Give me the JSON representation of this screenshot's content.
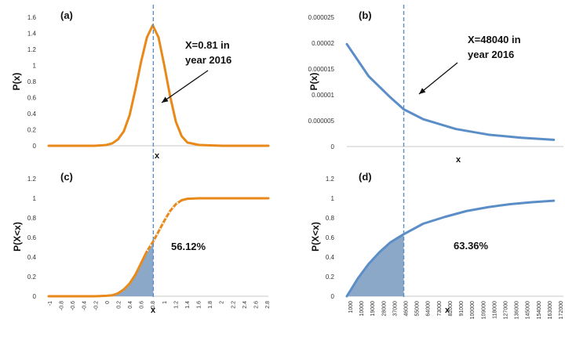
{
  "chart_data": [
    {
      "id": "a",
      "type": "line",
      "panel_label": "(a)",
      "ylabel": "P(x)",
      "xlabel": "x",
      "ylim": [
        0,
        1.6
      ],
      "y_ticks": [
        "0",
        "0.2",
        "0.4",
        "0.6",
        "0.8",
        "1",
        "1.2",
        "1.4",
        "1.6"
      ],
      "color": "#E8891A",
      "series": [
        {
          "x": [
            -1.0,
            -0.6,
            -0.2,
            0.0,
            0.1,
            0.2,
            0.3,
            0.4,
            0.5,
            0.6,
            0.7,
            0.8,
            0.9,
            1.0,
            1.1,
            1.2,
            1.3,
            1.4,
            1.6,
            2.0,
            2.8
          ],
          "y": [
            0.0,
            0.0,
            0.0,
            0.01,
            0.03,
            0.08,
            0.18,
            0.38,
            0.7,
            1.05,
            1.35,
            1.5,
            1.35,
            1.0,
            0.62,
            0.3,
            0.12,
            0.04,
            0.01,
            0.0,
            0.0
          ]
        }
      ],
      "marker": {
        "x": 0.81
      },
      "annotation": [
        "X=0.81 in",
        "year 2016"
      ]
    },
    {
      "id": "b",
      "type": "line",
      "panel_label": "(b)",
      "ylabel": "P(x)",
      "xlabel": "x",
      "ylim": [
        0,
        2.5e-05
      ],
      "y_ticks": [
        "0",
        "0.000005",
        "0.00001",
        "0.000015",
        "0.00002",
        "0.000025"
      ],
      "color": "#5B8EC7",
      "series": [
        {
          "x": [
            1000,
            19000,
            37000,
            48040,
            64000,
            91000,
            118000,
            145000,
            172000
          ],
          "y": [
            1.98e-05,
            1.36e-05,
            9.5e-06,
            7.2e-06,
            5.3e-06,
            3.4e-06,
            2.3e-06,
            1.7e-06,
            1.3e-06
          ]
        }
      ],
      "marker": {
        "x": 48040
      },
      "annotation": [
        "X=48040 in",
        "year 2016"
      ]
    },
    {
      "id": "c",
      "type": "area",
      "panel_label": "(c)",
      "ylabel": "P(X<x)",
      "xlabel": "x",
      "ylim": [
        0,
        1.2
      ],
      "y_ticks": [
        "0",
        "0.2",
        "0.4",
        "0.6",
        "0.8",
        "1",
        "1.2"
      ],
      "x_ticks": [
        "-1",
        "-0.8",
        "-0.6",
        "-0.4",
        "-0.2",
        "0",
        "0.2",
        "0.4",
        "0.6",
        "0.8",
        "1",
        "1.2",
        "1.4",
        "1.6",
        "1.8",
        "2",
        "2.2",
        "2.4",
        "2.6",
        "2.8"
      ],
      "color": "#E8891A",
      "fill_color": "#8CA8C8",
      "series": [
        {
          "x": [
            -1.0,
            -0.6,
            -0.2,
            0.0,
            0.1,
            0.2,
            0.3,
            0.4,
            0.5,
            0.6,
            0.7,
            0.81,
            0.9,
            1.0,
            1.1,
            1.2,
            1.3,
            1.4,
            1.6,
            2.0,
            2.8
          ],
          "y": [
            0.0,
            0.0,
            0.0,
            0.005,
            0.01,
            0.03,
            0.07,
            0.13,
            0.22,
            0.34,
            0.46,
            0.5612,
            0.66,
            0.77,
            0.87,
            0.94,
            0.98,
            0.995,
            1.0,
            1.0,
            1.0
          ]
        }
      ],
      "marker": {
        "x": 0.81
      },
      "annotation": "56.12%"
    },
    {
      "id": "d",
      "type": "area",
      "panel_label": "(d)",
      "ylabel": "P(X<x)",
      "xlabel": "x",
      "ylim": [
        0,
        1.2
      ],
      "y_ticks": [
        "0",
        "0.2",
        "0.4",
        "0.6",
        "0.8",
        "1",
        "1.2"
      ],
      "x_ticks": [
        "1000",
        "10000",
        "19000",
        "28000",
        "37000",
        "46000",
        "55000",
        "64000",
        "73000",
        "82000",
        "91000",
        "100000",
        "109000",
        "118000",
        "127000",
        "136000",
        "145000",
        "154000",
        "163000",
        "172000"
      ],
      "color": "#5B8EC7",
      "fill_color": "#8CA8C8",
      "series": [
        {
          "x": [
            1000,
            10000,
            19000,
            28000,
            37000,
            48040,
            64000,
            82000,
            100000,
            118000,
            136000,
            154000,
            172000
          ],
          "y": [
            0.0,
            0.18,
            0.33,
            0.45,
            0.55,
            0.6336,
            0.74,
            0.81,
            0.87,
            0.91,
            0.94,
            0.96,
            0.975
          ]
        }
      ],
      "marker": {
        "x": 48040
      },
      "annotation": "63.36%"
    }
  ]
}
